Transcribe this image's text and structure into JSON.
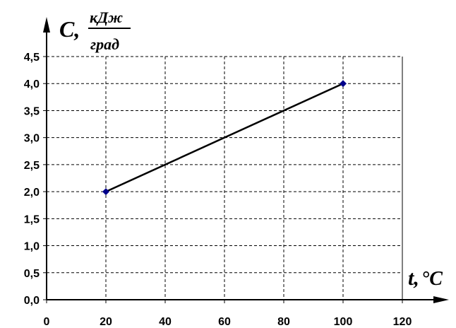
{
  "chart_data": {
    "type": "line",
    "xlabel_main": "t,",
    "xlabel_unit": "°C",
    "ylabel_main": "C,",
    "ylabel_unit_numerator": "кДж",
    "ylabel_unit_denominator": "град",
    "x_ticks": [
      "0",
      "20",
      "40",
      "60",
      "80",
      "100",
      "120"
    ],
    "y_ticks": [
      "0,0",
      "0,5",
      "1,0",
      "1,5",
      "2,0",
      "2,5",
      "3,0",
      "3,5",
      "4,0",
      "4,5"
    ],
    "xlim": [
      0,
      120
    ],
    "ylim": [
      0,
      4.5
    ],
    "grid": true,
    "series": [
      {
        "points": [
          {
            "x": 20,
            "y": 2.0
          },
          {
            "x": 100,
            "y": 4.0
          }
        ],
        "marker_color": "#00008b",
        "line_color": "#000000"
      }
    ]
  }
}
